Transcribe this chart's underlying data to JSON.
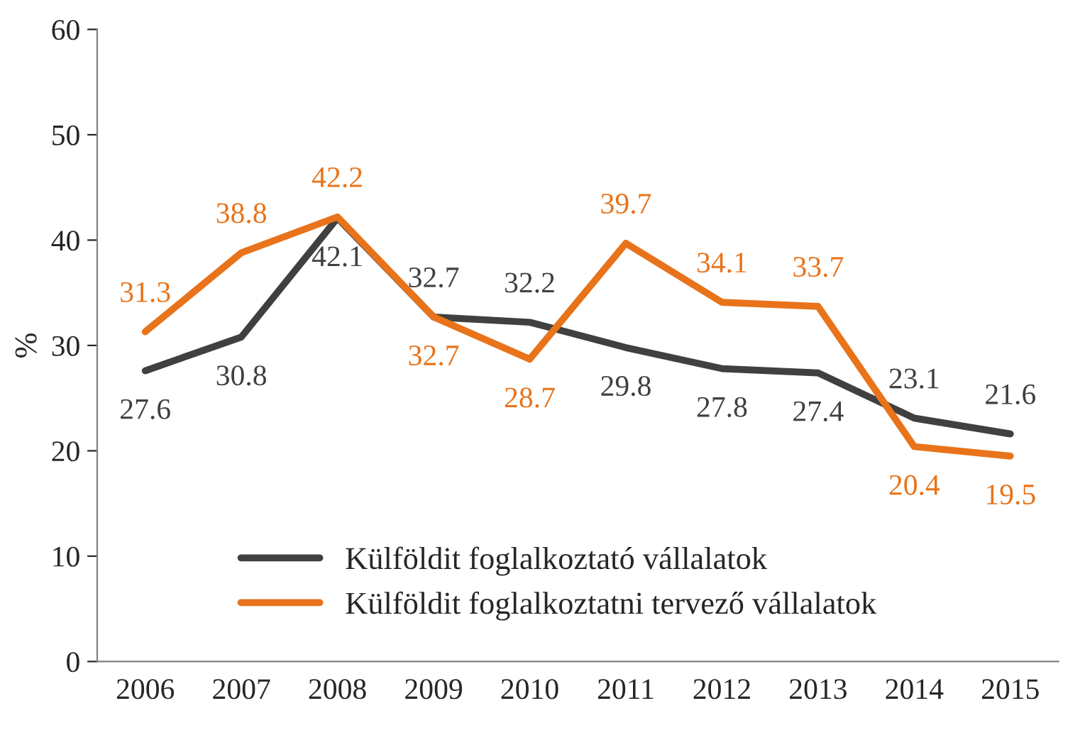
{
  "chart_data": {
    "type": "line",
    "ylabel": "%",
    "categories": [
      "2006",
      "2007",
      "2008",
      "2009",
      "2010",
      "2011",
      "2012",
      "2013",
      "2014",
      "2015"
    ],
    "series": [
      {
        "name": "Külföldit foglalkoztató vállalatok",
        "color": "#404040",
        "values": [
          27.6,
          30.8,
          42.1,
          32.7,
          32.2,
          29.8,
          27.8,
          27.4,
          23.1,
          21.6
        ]
      },
      {
        "name": "Külföldit foglalkoztatni tervező vállalatok",
        "color": "#e8731a",
        "values": [
          31.3,
          38.8,
          42.2,
          32.7,
          28.7,
          39.7,
          34.1,
          33.7,
          20.4,
          19.5
        ]
      }
    ],
    "ylim": [
      0,
      60
    ],
    "yticks": [
      0,
      10,
      20,
      30,
      40,
      50,
      60
    ],
    "data_labels": true,
    "grid": false,
    "legend": "bottom left",
    "marker": "none",
    "line_style": "solid"
  }
}
